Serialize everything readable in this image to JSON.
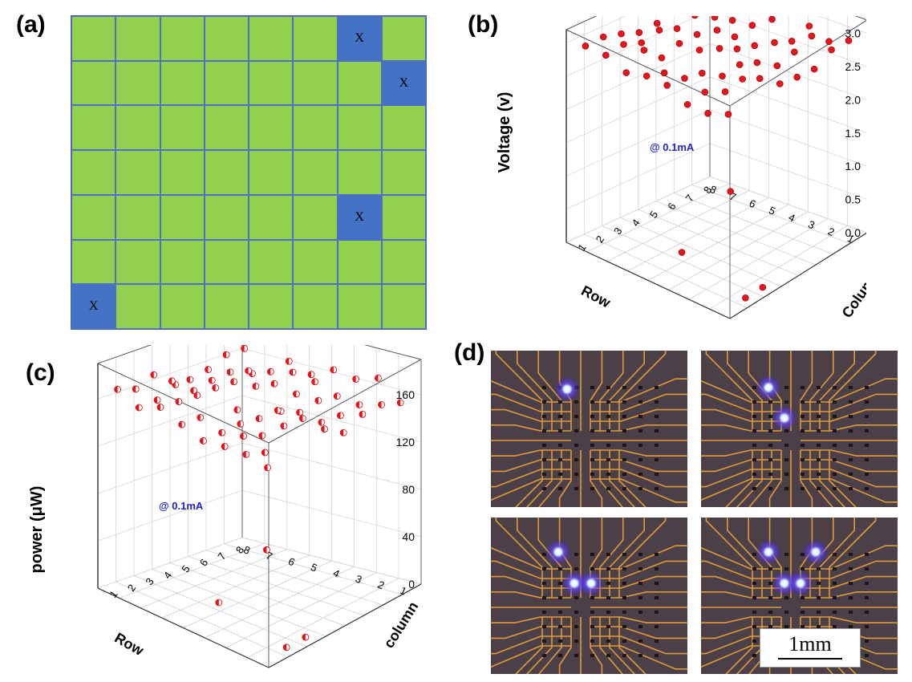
{
  "panels": {
    "a": {
      "label": "(a)",
      "rows": 7,
      "cols": 8,
      "dead_cells": [
        {
          "row": 0,
          "col": 6,
          "mark": "X"
        },
        {
          "row": 1,
          "col": 7,
          "mark": "X"
        },
        {
          "row": 4,
          "col": 6,
          "mark": "X"
        },
        {
          "row": 6,
          "col": 0,
          "mark": "X"
        }
      ],
      "colors": {
        "good": "#92d050",
        "dead": "#4472c4",
        "line": "#4f6fc4"
      }
    },
    "b": {
      "label": "(b)",
      "annotation": "@ 0.1mA"
    },
    "c": {
      "label": "(c)",
      "annotation": "@ 0.1mA"
    },
    "d": {
      "label": "(d)",
      "scale_bar": "1mm"
    }
  },
  "chart_data": [
    {
      "type": "scatter",
      "title": "",
      "zlabel": "Voltage (v)",
      "xlabel": "Row",
      "ylabel": "Column",
      "z_ticks": [
        "0.0",
        "0.5",
        "1.0",
        "1.5",
        "2.0",
        "2.5",
        "3.0"
      ],
      "x_ticks": [
        "1",
        "2",
        "3",
        "4",
        "5",
        "6",
        "7",
        "8"
      ],
      "y_ticks": [
        "1",
        "2",
        "3",
        "4",
        "5",
        "6",
        "7",
        "8"
      ],
      "zlim": [
        0,
        3.2
      ],
      "typical_value": 2.95,
      "outliers": [
        {
          "row": 1,
          "col": 6,
          "value": 0
        },
        {
          "row": 1,
          "col": 7,
          "value": 0
        },
        {
          "row": 5,
          "col": 6,
          "value": 0
        },
        {
          "row": 7,
          "col": 1,
          "value": 0
        }
      ],
      "marker_color": "#e8141b"
    },
    {
      "type": "scatter",
      "title": "",
      "zlabel": "power (μW)",
      "xlabel": "Row",
      "ylabel": "column",
      "z_ticks": [
        "0",
        "40",
        "80",
        "120",
        "160"
      ],
      "x_ticks": [
        "1",
        "2",
        "3",
        "4",
        "5",
        "6",
        "7",
        "8"
      ],
      "y_ticks": [
        "1",
        "2",
        "3",
        "4",
        "5",
        "6",
        "7",
        "8"
      ],
      "zlim": [
        0,
        190
      ],
      "typical_value": 165,
      "outliers": [
        {
          "row": 1,
          "col": 6,
          "value": 0
        },
        {
          "row": 1,
          "col": 7,
          "value": 0
        },
        {
          "row": 5,
          "col": 6,
          "value": 0
        },
        {
          "row": 7,
          "col": 1,
          "value": 0
        }
      ],
      "marker_color": "#e8141b"
    }
  ]
}
